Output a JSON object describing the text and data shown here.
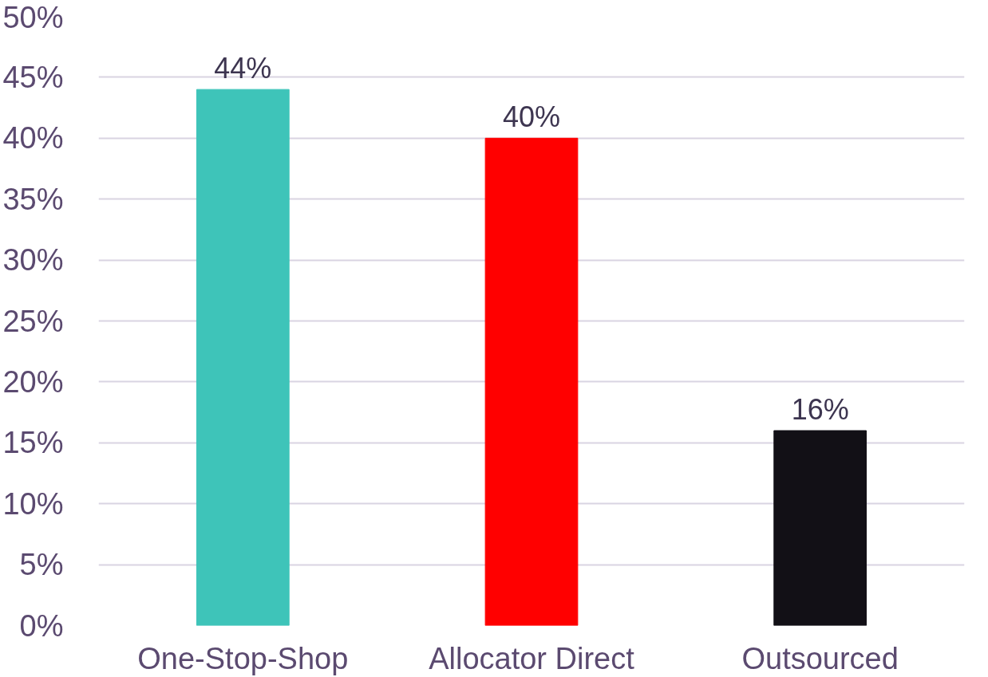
{
  "chart_data": {
    "type": "bar",
    "categories": [
      "One-Stop-Shop",
      "Allocator Direct",
      "Outsourced"
    ],
    "values": [
      44,
      40,
      16
    ],
    "colors": [
      "#3ec4b9",
      "#ff0000",
      "#121016"
    ],
    "ylim": [
      0,
      50
    ],
    "yticks": [
      {
        "value": 0,
        "label": "0%"
      },
      {
        "value": 5,
        "label": "5%"
      },
      {
        "value": 10,
        "label": "10%"
      },
      {
        "value": 15,
        "label": "15%"
      },
      {
        "value": 20,
        "label": "20%"
      },
      {
        "value": 25,
        "label": "25%"
      },
      {
        "value": 30,
        "label": "30%"
      },
      {
        "value": 35,
        "label": "35%"
      },
      {
        "value": 40,
        "label": "40%"
      },
      {
        "value": 45,
        "label": "45%"
      },
      {
        "value": 50,
        "label": "50%"
      }
    ],
    "value_labels": [
      "44%",
      "40%",
      "16%"
    ],
    "grid": "y"
  }
}
